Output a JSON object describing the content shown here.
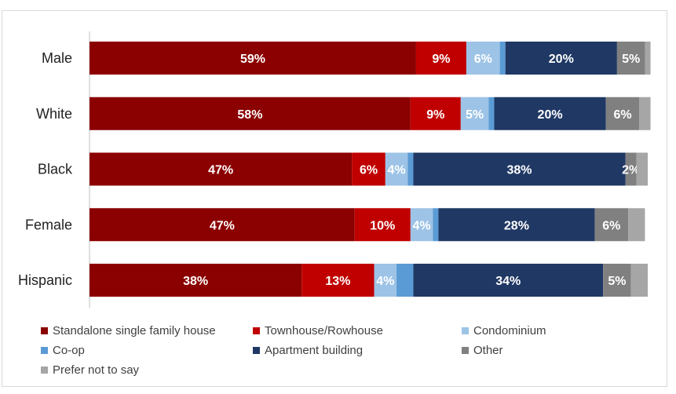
{
  "chart_data": {
    "type": "bar",
    "orientation": "horizontal",
    "stacked": true,
    "percent_stacked": true,
    "title": "",
    "xlabel": "",
    "ylabel": "",
    "xlim": [
      0,
      100
    ],
    "grid": false,
    "legend_position": "bottom",
    "categories": [
      "Male",
      "White",
      "Black",
      "Female",
      "Hispanic"
    ],
    "series": [
      {
        "name": "Standalone single family house",
        "color": "#8b0000",
        "values": [
          58.5,
          57.5,
          47,
          47.5,
          38
        ],
        "labels": [
          "59%",
          "58%",
          "47%",
          "47%",
          "38%"
        ]
      },
      {
        "name": "Townhouse/Rowhouse",
        "color": "#c00000",
        "values": [
          9,
          9,
          6,
          10,
          13
        ],
        "labels": [
          "9%",
          "9%",
          "6%",
          "10%",
          "13%"
        ]
      },
      {
        "name": "Condominium",
        "color": "#9dc3e6",
        "values": [
          6,
          5,
          4,
          4,
          4
        ],
        "labels": [
          "6%",
          "5%",
          "4%",
          "4%",
          "4%"
        ]
      },
      {
        "name": "Co-op",
        "color": "#5b9bd5",
        "values": [
          1,
          1,
          1,
          1,
          3
        ],
        "labels": [
          "",
          "",
          "",
          "",
          ""
        ]
      },
      {
        "name": "Apartment building",
        "color": "#1f3864",
        "values": [
          20,
          20,
          38,
          28,
          34
        ],
        "labels": [
          "20%",
          "20%",
          "38%",
          "28%",
          "34%"
        ]
      },
      {
        "name": "Other",
        "color": "#808080",
        "values": [
          5,
          6,
          2,
          6,
          5
        ],
        "labels": [
          "5%",
          "6%",
          "2%",
          "6%",
          "5%"
        ]
      },
      {
        "name": "Prefer not to say",
        "color": "#a6a6a6",
        "values": [
          1,
          2,
          2,
          3,
          3
        ],
        "labels": [
          "",
          "",
          "",
          "",
          ""
        ]
      }
    ]
  }
}
